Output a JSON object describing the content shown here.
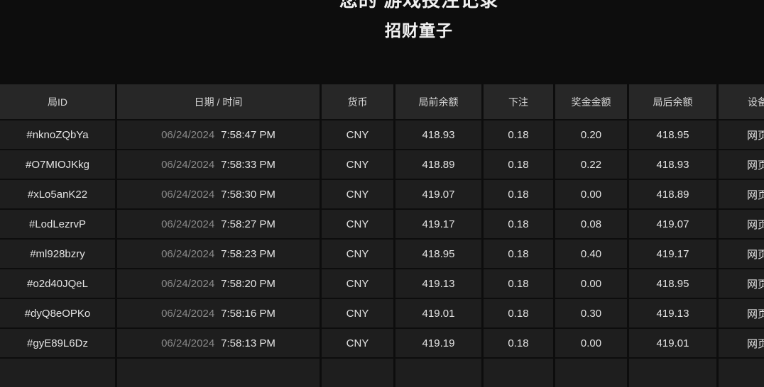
{
  "page": {
    "clipped_heading_partial": "您的 游戏投注记录",
    "title": "招财童子"
  },
  "colors": {
    "page_bg": "#0d0d0d",
    "header_cell_bg": "#272727",
    "row_cell_bg": "#1e1e1e",
    "text_primary": "#e4e4e4",
    "text_muted": "#8a8a8a"
  },
  "table": {
    "headers": [
      "局ID",
      "日期 / 时间",
      "货币",
      "局前余额",
      "下注",
      "奖金金额",
      "局后余额",
      "设备"
    ],
    "rows": [
      {
        "id": "#nknoZQbYa",
        "date": "06/24/2024",
        "time": "7:58:47 PM",
        "currency": "CNY",
        "balance_before": "418.93",
        "bet": "0.18",
        "win_amount": "0.20",
        "balance_after": "418.95",
        "device": "网页"
      },
      {
        "id": "#O7MIOJKkg",
        "date": "06/24/2024",
        "time": "7:58:33 PM",
        "currency": "CNY",
        "balance_before": "418.89",
        "bet": "0.18",
        "win_amount": "0.22",
        "balance_after": "418.93",
        "device": "网页"
      },
      {
        "id": "#xLo5anK22",
        "date": "06/24/2024",
        "time": "7:58:30 PM",
        "currency": "CNY",
        "balance_before": "419.07",
        "bet": "0.18",
        "win_amount": "0.00",
        "balance_after": "418.89",
        "device": "网页"
      },
      {
        "id": "#LodLezrvP",
        "date": "06/24/2024",
        "time": "7:58:27 PM",
        "currency": "CNY",
        "balance_before": "419.17",
        "bet": "0.18",
        "win_amount": "0.08",
        "balance_after": "419.07",
        "device": "网页"
      },
      {
        "id": "#ml928bzry",
        "date": "06/24/2024",
        "time": "7:58:23 PM",
        "currency": "CNY",
        "balance_before": "418.95",
        "bet": "0.18",
        "win_amount": "0.40",
        "balance_after": "419.17",
        "device": "网页"
      },
      {
        "id": "#o2d40JQeL",
        "date": "06/24/2024",
        "time": "7:58:20 PM",
        "currency": "CNY",
        "balance_before": "419.13",
        "bet": "0.18",
        "win_amount": "0.00",
        "balance_after": "418.95",
        "device": "网页"
      },
      {
        "id": "#dyQ8eOPKo",
        "date": "06/24/2024",
        "time": "7:58:16 PM",
        "currency": "CNY",
        "balance_before": "419.01",
        "bet": "0.18",
        "win_amount": "0.30",
        "balance_after": "419.13",
        "device": "网页"
      },
      {
        "id": "#gyE89L6Dz",
        "date": "06/24/2024",
        "time": "7:58:13 PM",
        "currency": "CNY",
        "balance_before": "419.19",
        "bet": "0.18",
        "win_amount": "0.00",
        "balance_after": "419.01",
        "device": "网页"
      }
    ]
  }
}
